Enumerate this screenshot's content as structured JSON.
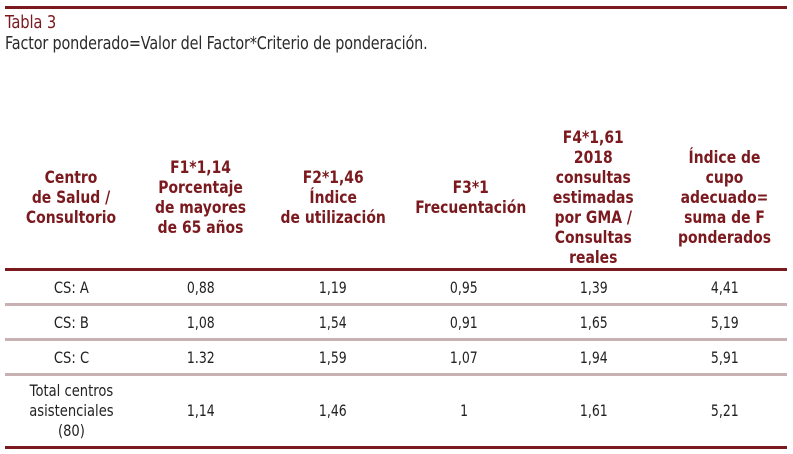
{
  "title": "Tabla 3",
  "subtitle": "Factor ponderado=Valor del Factor*Criterio de ponderación.",
  "colors": {
    "accent": "#7a1a1f",
    "divider": "#c8b1b2",
    "text": "#222222"
  },
  "table": {
    "headers": [
      [
        "Centro",
        "de Salud /",
        "Consultorio"
      ],
      [
        "F1*1,14",
        "Porcentaje",
        "de mayores",
        "de 65 años"
      ],
      [
        "F2*1,46",
        "Índice",
        "de utilización"
      ],
      [
        "F3*1",
        "Frecuentación"
      ],
      [
        "F4*1,61",
        "2018",
        "consultas",
        "estimadas",
        "por GMA /",
        "Consultas",
        "reales"
      ],
      [
        "Índice de cupo",
        "adecuado=",
        "suma de F",
        "ponderados"
      ]
    ],
    "rows": [
      [
        "CS: A",
        "0,88",
        "1,19",
        "0,95",
        "1,39",
        "4,41"
      ],
      [
        "CS: B",
        "1,08",
        "1,54",
        "0,91",
        "1,65",
        "5,19"
      ],
      [
        "CS: C",
        "1.32",
        "1,59",
        "1,07",
        "1,94",
        "5,91"
      ]
    ],
    "total": {
      "label": [
        "Total centros",
        "asistenciales",
        "(80)"
      ],
      "values": [
        "1,14",
        "1,46",
        "1",
        "1,61",
        "5,21"
      ]
    }
  }
}
